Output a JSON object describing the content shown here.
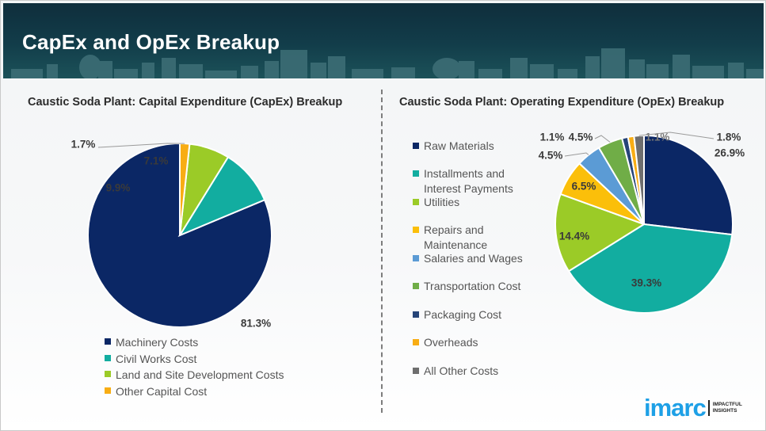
{
  "header": {
    "title": "CapEx and OpEx Breakup"
  },
  "chart_data": [
    {
      "type": "pie",
      "title": "Caustic Soda Plant: Capital Expenditure (CapEx) Breakup",
      "categories": [
        "Machinery Costs",
        "Civil Works Cost",
        "Land and Site Development Costs",
        "Other Capital Cost"
      ],
      "values": [
        81.3,
        9.9,
        7.1,
        1.7
      ],
      "labels": [
        "81.3%",
        "9.9%",
        "7.1%",
        "1.7%"
      ],
      "colors": [
        "#0b2765",
        "#12ada0",
        "#9bcb27",
        "#f8ad14"
      ],
      "start_angle": "12 o'clock",
      "direction": "counterclockwise",
      "legend_position": "bottom"
    },
    {
      "type": "pie",
      "title": "Caustic Soda Plant: Operating Expenditure (OpEx) Breakup",
      "categories": [
        "Raw Materials",
        "Installments and Interest Payments",
        "Utilities",
        "Repairs and Maintenance",
        "Salaries and Wages",
        "Transportation Cost",
        "Packaging Cost",
        "Overheads",
        "All Other Costs"
      ],
      "values": [
        26.9,
        39.3,
        14.4,
        6.5,
        4.5,
        4.5,
        1.1,
        1.1,
        1.8
      ],
      "labels": [
        "26.9%",
        "39.3%",
        "14.4%",
        "6.5%",
        "4.5%",
        "4.5%",
        "1.1%",
        "1.1%",
        "1.8%"
      ],
      "colors": [
        "#0b2765",
        "#12ada0",
        "#9bcb27",
        "#fbbf0a",
        "#5b9bd5",
        "#70ad47",
        "#264478",
        "#f8ad14",
        "#6e6e6e"
      ],
      "start_angle": "12 o'clock",
      "direction": "clockwise",
      "legend_position": "left"
    }
  ],
  "branding": {
    "logo_text": "imarc",
    "tagline_line1": "IMPACTFUL",
    "tagline_line2": "INSIGHTS"
  }
}
